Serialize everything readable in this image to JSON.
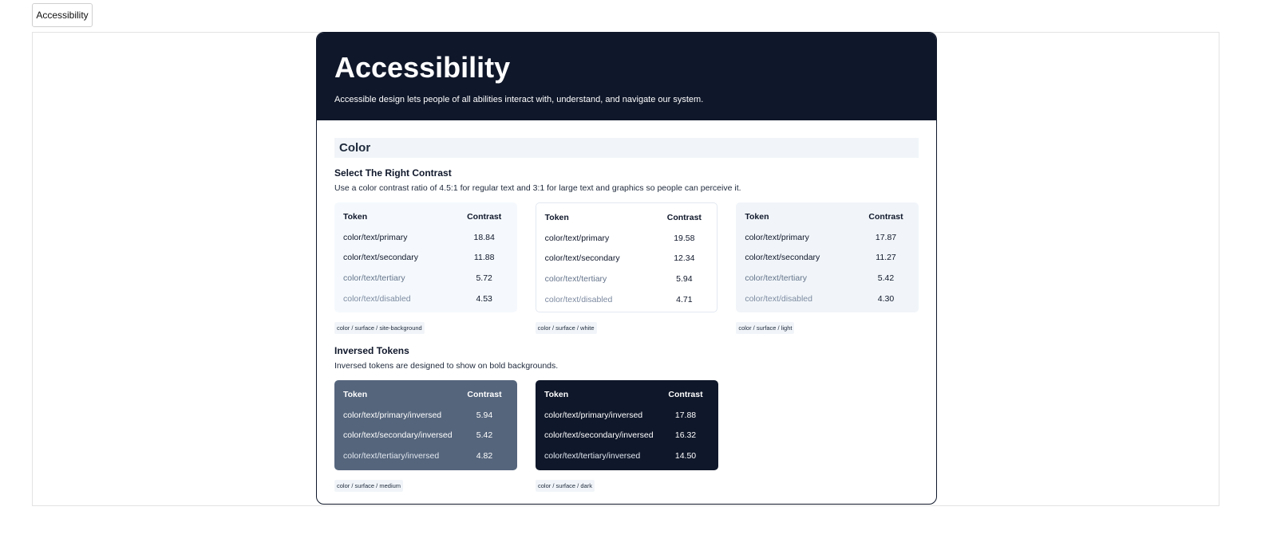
{
  "tab": {
    "label": "Accessibility"
  },
  "header": {
    "title": "Accessibility",
    "subtitle": "Accessible design lets people of all abilities interact with, understand, and navigate our system."
  },
  "section": {
    "title": "Color"
  },
  "contrast": {
    "title": "Select The Right Contrast",
    "description": "Use a color contrast ratio of 4.5:1 for regular text and 3:1 for large text and graphics so people can perceive it.",
    "tables": [
      {
        "surface": "color / surface / site-background",
        "headers": [
          "Token",
          "Contrast"
        ],
        "rows": [
          {
            "token": "color/text/primary",
            "value": "18.84"
          },
          {
            "token": "color/text/secondary",
            "value": "11.88"
          },
          {
            "token": "color/text/tertiary",
            "value": "5.72"
          },
          {
            "token": "color/text/disabled",
            "value": "4.53"
          }
        ]
      },
      {
        "surface": "color / surface / white",
        "headers": [
          "Token",
          "Contrast"
        ],
        "rows": [
          {
            "token": "color/text/primary",
            "value": "19.58"
          },
          {
            "token": "color/text/secondary",
            "value": "12.34"
          },
          {
            "token": "color/text/tertiary",
            "value": "5.94"
          },
          {
            "token": "color/text/disabled",
            "value": "4.71"
          }
        ]
      },
      {
        "surface": "color / surface / light",
        "headers": [
          "Token",
          "Contrast"
        ],
        "rows": [
          {
            "token": "color/text/primary",
            "value": "17.87"
          },
          {
            "token": "color/text/secondary",
            "value": "11.27"
          },
          {
            "token": "color/text/tertiary",
            "value": "5.42"
          },
          {
            "token": "color/text/disabled",
            "value": "4.30"
          }
        ]
      }
    ]
  },
  "inversed": {
    "title": "Inversed Tokens",
    "description": "Inversed tokens are designed to show on bold backgrounds.",
    "tables": [
      {
        "surface": "color / surface / medium",
        "headers": [
          "Token",
          "Contrast"
        ],
        "rows": [
          {
            "token": "color/text/primary/inversed",
            "value": "5.94"
          },
          {
            "token": "color/text/secondary/inversed",
            "value": "5.42"
          },
          {
            "token": "color/text/tertiary/inversed",
            "value": "4.82"
          }
        ]
      },
      {
        "surface": "color / surface / dark",
        "headers": [
          "Token",
          "Contrast"
        ],
        "rows": [
          {
            "token": "color/text/primary/inversed",
            "value": "17.88"
          },
          {
            "token": "color/text/secondary/inversed",
            "value": "16.32"
          },
          {
            "token": "color/text/tertiary/inversed",
            "value": "14.50"
          }
        ]
      }
    ]
  },
  "colors": {
    "header_bg": "#0f172a",
    "surface_medium": "#55657c",
    "surface_dark": "#0f172a",
    "surface_light": "#f1f5f9"
  }
}
